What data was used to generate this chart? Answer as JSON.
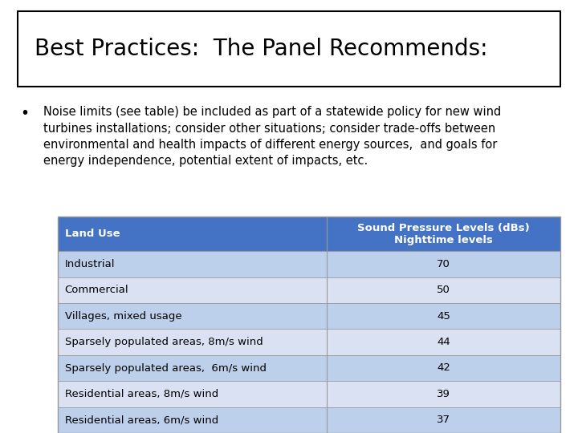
{
  "title": "Best Practices:  The Panel Recommends:",
  "bullet_text": "Noise limits (see table) be included as part of a statewide policy for new wind turbines installations; consider other situations; consider trade-offs between environmental and health impacts of different energy sources,  and goals for energy independence, potential extent of impacts, etc.",
  "table_header": [
    "Land Use",
    "Sound Pressure Levels (dBs)\nNighttime levels"
  ],
  "table_rows": [
    [
      "Industrial",
      "70"
    ],
    [
      "Commercial",
      "50"
    ],
    [
      "Villages, mixed usage",
      "45"
    ],
    [
      "Sparsely populated areas, 8m/s wind",
      "44"
    ],
    [
      "Sparsely populated areas,  6m/s wind",
      "42"
    ],
    [
      "Residential areas, 8m/s wind",
      "39"
    ],
    [
      "Residential areas, 6m/s wind",
      "37"
    ]
  ],
  "header_bg_color": "#4472C4",
  "header_text_color": "#FFFFFF",
  "row_even_color": "#D9E1F2",
  "row_odd_color": "#BDD0EB",
  "background_color": "#FFFFFF",
  "title_fontsize": 20,
  "body_fontsize": 10.5,
  "table_fontsize": 9.5
}
